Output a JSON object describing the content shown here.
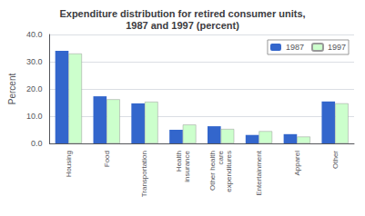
{
  "chart_data": {
    "type": "bar",
    "title": "Expenditure distribution for retired consumer units,\n1987 and 1997 (percent)",
    "categories": [
      "Housing",
      "Food",
      "Transportation",
      "Health\ninsurance",
      "Other health\ncare\nexpenditures",
      "Entertainment",
      "Apparel",
      "Other"
    ],
    "series": [
      {
        "name": "1987",
        "color": "#3366cc",
        "values": [
          34.0,
          17.3,
          14.7,
          5.0,
          6.3,
          3.1,
          3.4,
          15.4
        ]
      },
      {
        "name": "1997",
        "color": "#ccffcc",
        "values": [
          33.0,
          16.2,
          15.3,
          6.9,
          5.3,
          4.5,
          2.5,
          14.7
        ]
      }
    ],
    "ylabel": "Percent",
    "ylim": [
      0,
      40
    ],
    "yticks": [
      {
        "value": 0,
        "label": "0.0"
      },
      {
        "value": 10,
        "label": "10.0"
      },
      {
        "value": 20,
        "label": "20.0"
      },
      {
        "value": 30,
        "label": "30.0"
      },
      {
        "value": 40,
        "label": "40.0"
      }
    ],
    "grid": true,
    "legend": "upper right"
  }
}
